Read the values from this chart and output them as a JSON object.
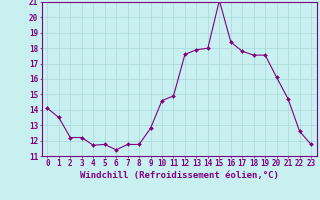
{
  "x": [
    0,
    1,
    2,
    3,
    4,
    5,
    6,
    7,
    8,
    9,
    10,
    11,
    12,
    13,
    14,
    15,
    16,
    17,
    18,
    19,
    20,
    21,
    22,
    23
  ],
  "y": [
    14.1,
    13.5,
    12.2,
    12.2,
    11.7,
    11.75,
    11.4,
    11.75,
    11.75,
    12.8,
    14.6,
    14.9,
    17.6,
    17.9,
    18.0,
    21.1,
    18.4,
    17.8,
    17.55,
    17.55,
    16.1,
    14.7,
    12.6,
    11.75
  ],
  "xlabel": "Windchill (Refroidissement éolien,°C)",
  "ylim": [
    11,
    21
  ],
  "xlim": [
    -0.5,
    23.5
  ],
  "yticks": [
    11,
    12,
    13,
    14,
    15,
    16,
    17,
    18,
    19,
    20,
    21
  ],
  "xticks": [
    0,
    1,
    2,
    3,
    4,
    5,
    6,
    7,
    8,
    9,
    10,
    11,
    12,
    13,
    14,
    15,
    16,
    17,
    18,
    19,
    20,
    21,
    22,
    23
  ],
  "line_color": "#800080",
  "marker_color": "#800080",
  "bg_color": "#c8f0f0",
  "grid_color": "#a8d8d8",
  "axis_color": "#800080",
  "tick_color": "#800080",
  "label_color": "#800080",
  "xlabel_fontsize": 6.5,
  "tick_fontsize": 5.5
}
